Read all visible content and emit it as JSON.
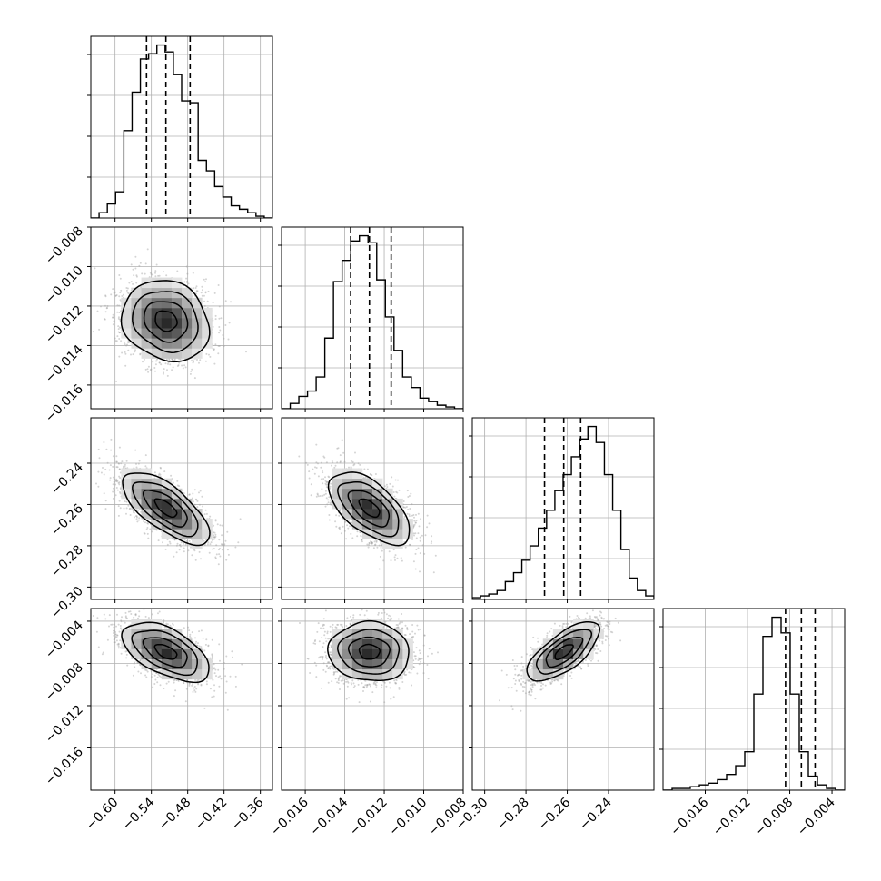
{
  "chart_data": {
    "type": "corner",
    "n_params": 4,
    "params": [
      {
        "lim": [
          -0.64,
          -0.34
        ],
        "ticks": [
          -0.6,
          -0.54,
          -0.48,
          -0.42,
          -0.36
        ],
        "tick_labels": [
          "−0.60",
          "−0.54",
          "−0.48",
          "−0.42",
          "−0.36"
        ],
        "quantiles": [
          -0.548,
          -0.516,
          -0.476
        ],
        "median": -0.516,
        "hist_counts": [
          0,
          3,
          8,
          15,
          50,
          72,
          91,
          94,
          99,
          95,
          82,
          67,
          66,
          33,
          27,
          18,
          12,
          7,
          5,
          3,
          1,
          0
        ]
      },
      {
        "lim": [
          -0.0172,
          -0.008
        ],
        "ticks": [
          -0.016,
          -0.014,
          -0.012,
          -0.01,
          -0.008
        ],
        "tick_labels": [
          "−0.016",
          "−0.014",
          "−0.012",
          "−0.010",
          "−0.008"
        ],
        "quantiles": [
          -0.0137,
          -0.01275,
          -0.01165
        ],
        "median": -0.01275,
        "hist_counts": [
          0,
          3,
          7,
          10,
          18,
          40,
          72,
          84,
          95,
          98,
          94,
          73,
          52,
          33,
          18,
          12,
          6,
          4,
          2,
          1,
          0
        ]
      },
      {
        "lim": [
          -0.306,
          -0.218
        ],
        "ticks": [
          -0.3,
          -0.28,
          -0.26,
          -0.24
        ],
        "tick_labels": [
          "−0.30",
          "−0.28",
          "−0.26",
          "−0.24"
        ],
        "quantiles": [
          -0.271,
          -0.2617,
          -0.2535
        ],
        "median": -0.2617,
        "hist_counts": [
          1,
          2,
          3,
          5,
          10,
          15,
          22,
          30,
          40,
          50,
          61,
          70,
          80,
          90,
          97,
          88,
          70,
          50,
          28,
          12,
          5,
          2
        ]
      },
      {
        "lim": [
          -0.02,
          -0.0028
        ],
        "ticks": [
          -0.016,
          -0.012,
          -0.008,
          -0.004
        ],
        "tick_labels": [
          "−0.016",
          "−0.012",
          "−0.008",
          "−0.004"
        ],
        "quantiles": [
          -0.0084,
          -0.0069,
          -0.0056
        ],
        "median": -0.0069,
        "hist_counts": [
          0,
          1,
          1,
          2,
          3,
          4,
          6,
          9,
          14,
          22,
          55,
          88,
          99,
          90,
          55,
          22,
          8,
          3,
          1,
          0
        ]
      }
    ],
    "correlations": [
      [
        1.0,
        -0.15,
        -0.7,
        -0.55
      ],
      [
        -0.15,
        1.0,
        -0.6,
        -0.05
      ],
      [
        -0.7,
        -0.6,
        1.0,
        0.7
      ],
      [
        -0.55,
        -0.05,
        0.7,
        1.0
      ]
    ],
    "contour_levels_sigma": [
      0.5,
      1.0,
      1.5,
      2.0
    ],
    "grid": true,
    "colors": {
      "line": "#000000",
      "grid": "#b0b0b0",
      "points": "#a0a0a0",
      "background": "#ffffff"
    }
  }
}
